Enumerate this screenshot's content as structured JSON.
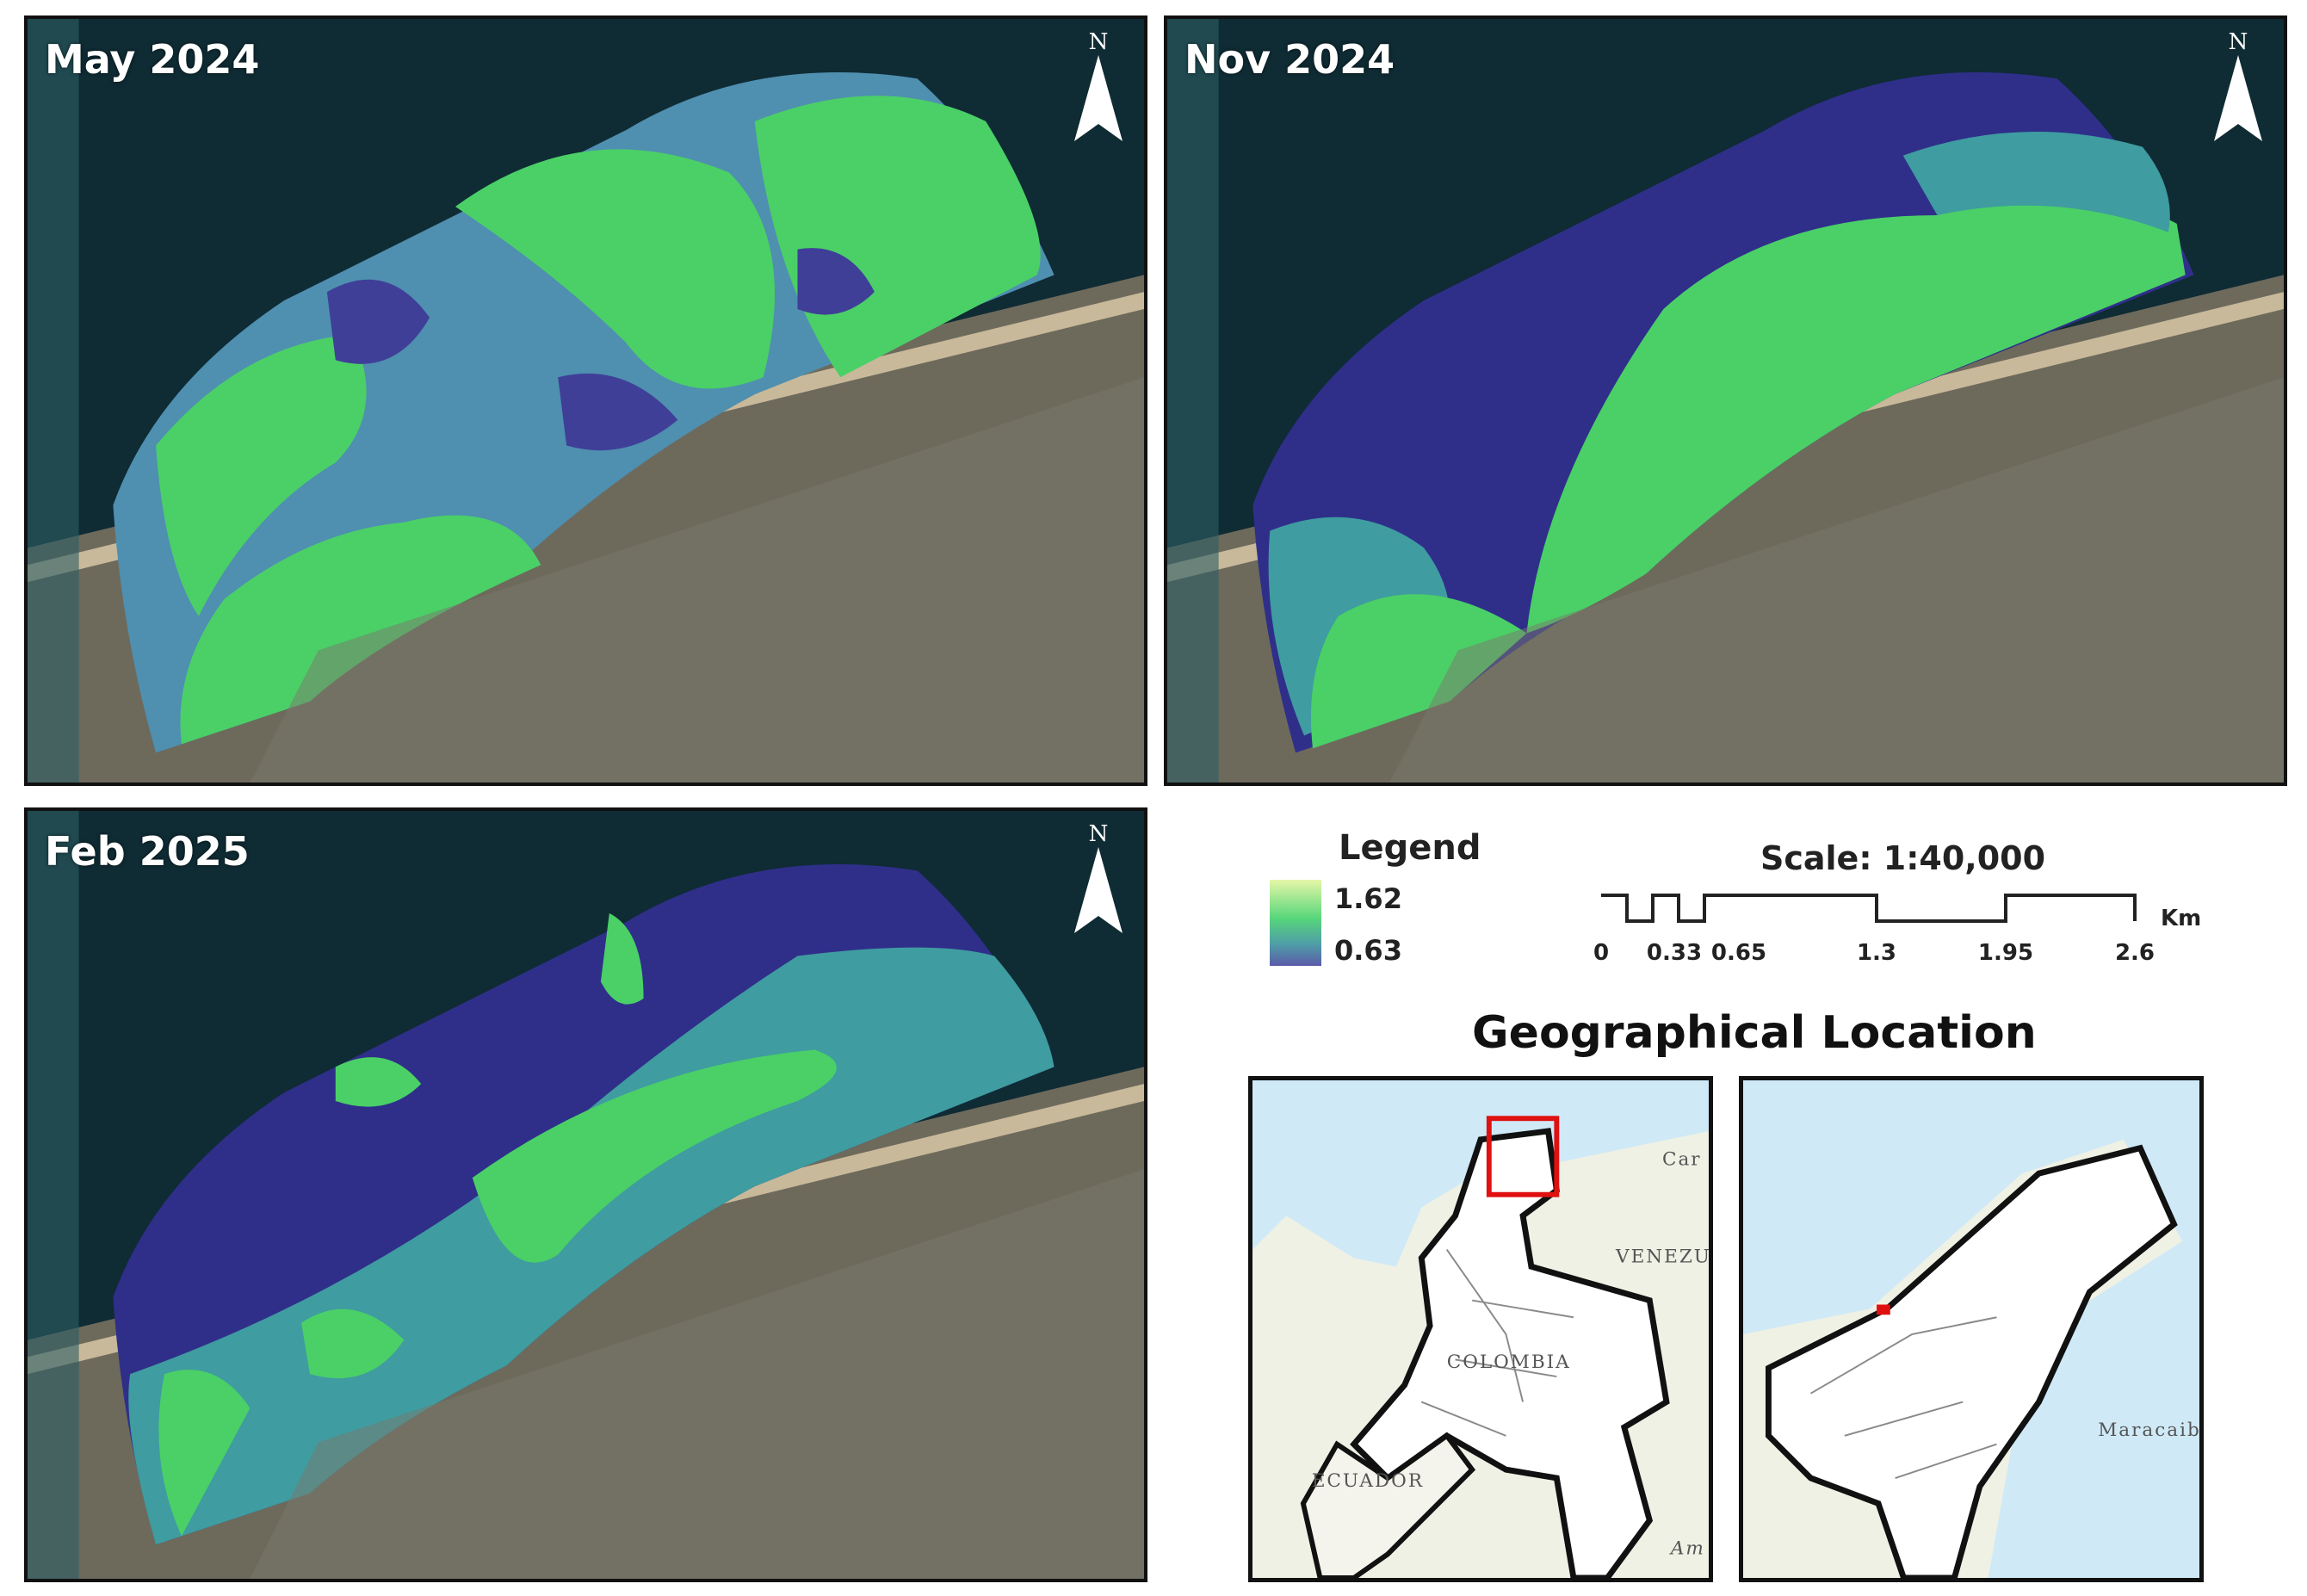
{
  "panels": [
    {
      "title": "May 2024"
    },
    {
      "title": "Nov 2024"
    },
    {
      "title": "Feb 2025"
    }
  ],
  "north_letter": "N",
  "legend": {
    "title": "Legend",
    "max": "1.62",
    "min": "0.63",
    "colors": [
      "#e6f7a9",
      "#56d67a",
      "#4f9da7",
      "#5a5aa8"
    ]
  },
  "scale": {
    "title": "Scale: 1:40,000",
    "unit": "Km",
    "ticks": [
      "0",
      "0.33",
      "0.65",
      "1.3",
      "1.95",
      "2.6"
    ]
  },
  "location": {
    "title": "Geographical Location",
    "labels": [
      "Car",
      "VENEZU",
      "COLOMBIA",
      "ECUADOR",
      "Am",
      "Maracaib"
    ]
  }
}
